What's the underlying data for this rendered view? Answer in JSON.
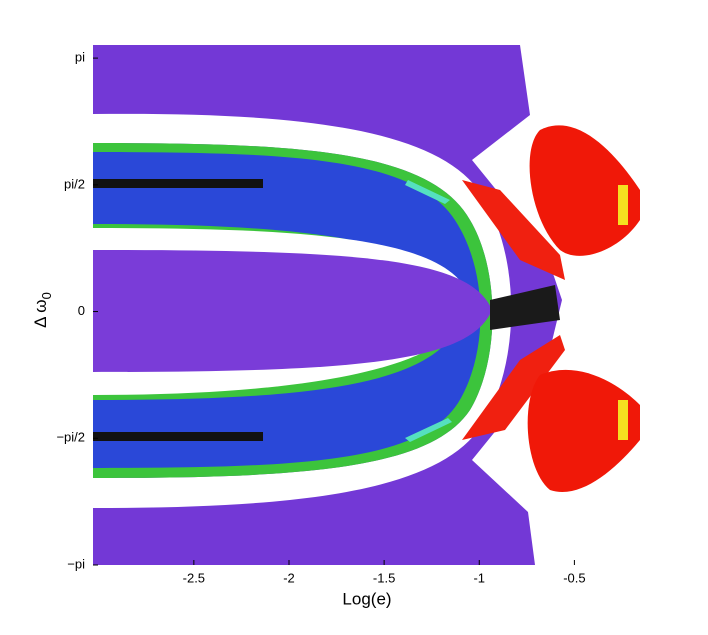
{
  "chart_data": {
    "type": "density-map",
    "xlabel": "Log(e)",
    "ylabel": "Δ ω",
    "ylabel_subscript": "0",
    "xlim": [
      -3.03,
      -0.15
    ],
    "xticks": [
      -2.5,
      -2,
      -1.5,
      -1,
      -0.5
    ],
    "ylim": [
      -3.1416,
      3.304
    ],
    "yticks": [
      {
        "value": -3.1416,
        "label": "−pi"
      },
      {
        "value": -1.5708,
        "label": "−pi/2"
      },
      0,
      {
        "value": 1.5708,
        "label": "pi/2"
      },
      {
        "value": 3.1416,
        "label": "pi"
      }
    ]
  }
}
